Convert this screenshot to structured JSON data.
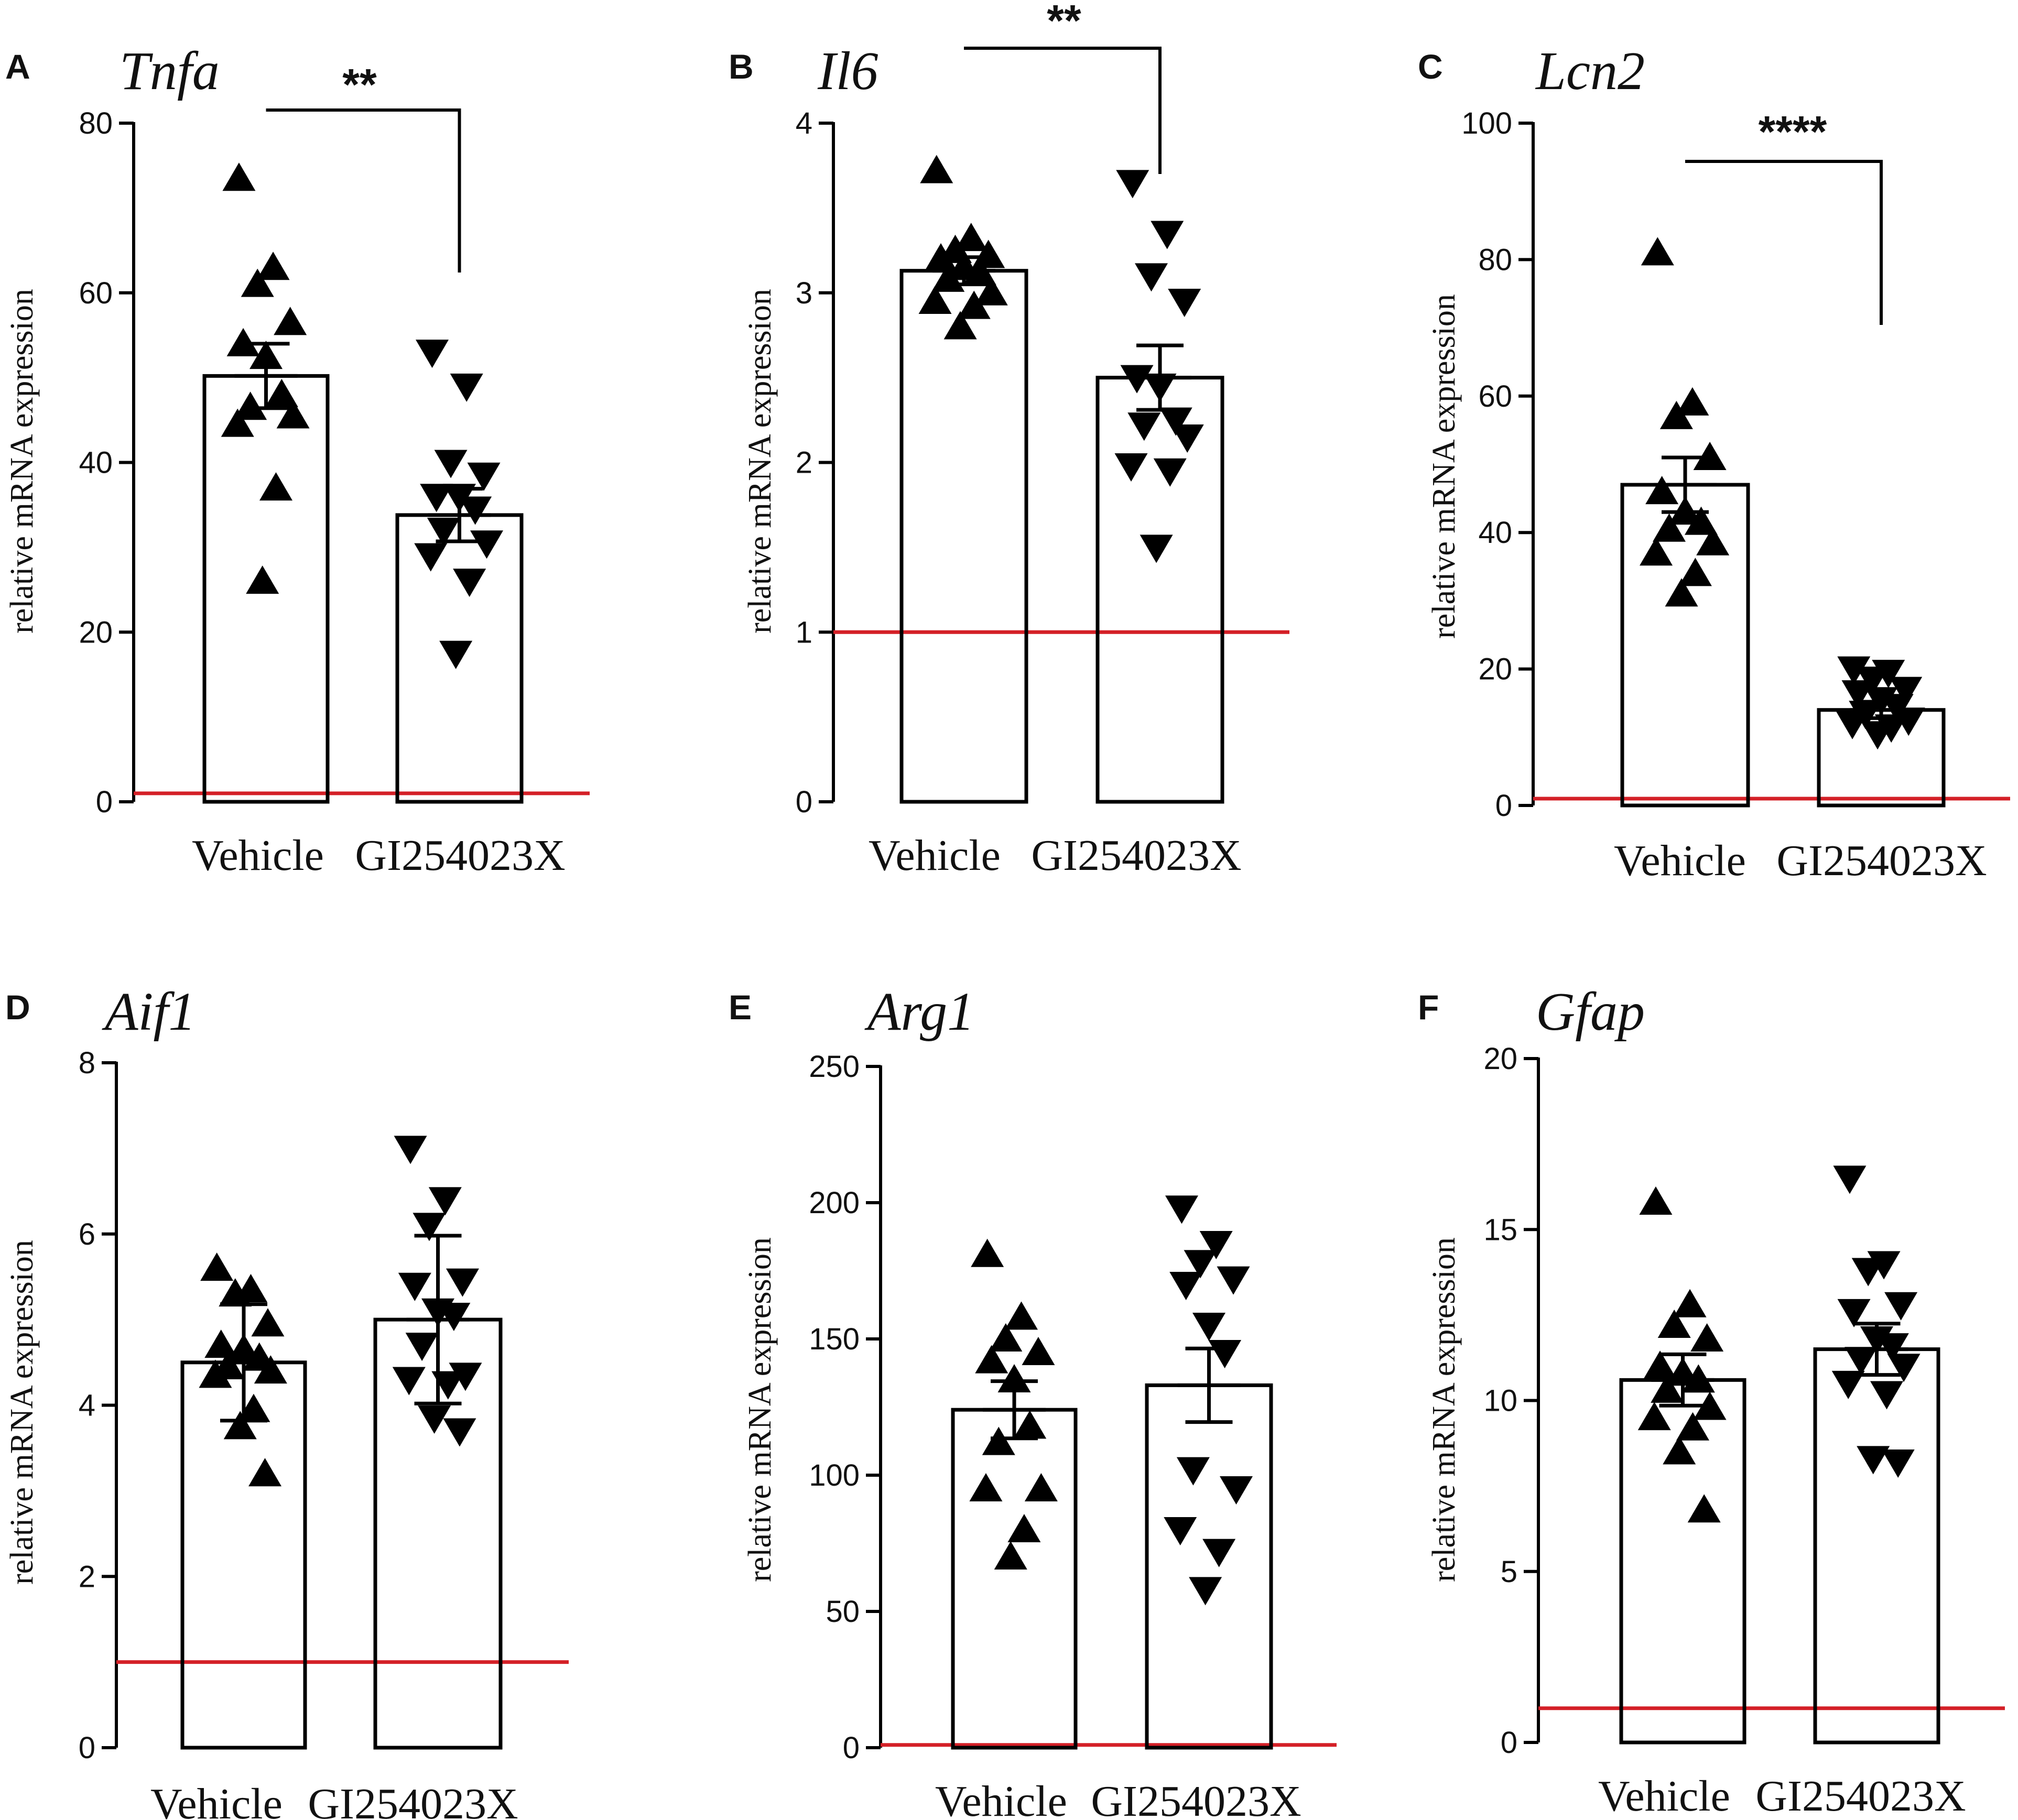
{
  "chart_data": [
    {
      "type": "bar",
      "panel": "A",
      "title": "Tnfa",
      "ylabel": "relative mRNA expression",
      "categories": [
        "Vehicle",
        "GI254023X"
      ],
      "ylim": [
        0,
        80
      ],
      "yticks": [
        0,
        20,
        40,
        60,
        80
      ],
      "means": [
        50.2,
        33.8
      ],
      "sem": [
        3.8,
        3.1
      ],
      "reference_line": 1,
      "significance": "**",
      "points": [
        [
          73.5,
          63.0,
          61.0,
          56.5,
          54.0,
          52.5,
          48.0,
          46.5,
          45.5,
          44.5,
          37.0,
          26.0
        ],
        [
          53.0,
          49.0,
          40.0,
          38.5,
          36.0,
          36.0,
          34.5,
          32.0,
          30.5,
          29.0,
          26.0,
          17.5
        ]
      ]
    },
    {
      "type": "bar",
      "panel": "B",
      "title": "Il6",
      "ylabel": "relative mRNA expression",
      "categories": [
        "Vehicle",
        "GI254023X"
      ],
      "ylim": [
        0,
        4
      ],
      "yticks": [
        0,
        1,
        2,
        3,
        4
      ],
      "means": [
        3.13,
        2.5
      ],
      "sem": [
        0.08,
        0.19
      ],
      "reference_line": 1,
      "significance": "**",
      "points": [
        [
          3.72,
          3.32,
          3.25,
          3.22,
          3.2,
          3.15,
          3.12,
          3.08,
          3.0,
          2.95,
          2.92,
          2.8
        ],
        [
          3.65,
          3.35,
          3.1,
          2.95,
          2.5,
          2.45,
          2.25,
          2.22,
          2.15,
          1.98,
          1.95,
          1.5
        ]
      ]
    },
    {
      "type": "bar",
      "panel": "C",
      "title": "Lcn2",
      "ylabel": "relative mRNA expression",
      "categories": [
        "Vehicle",
        "GI254023X"
      ],
      "ylim": [
        0,
        100
      ],
      "yticks": [
        0,
        20,
        40,
        60,
        80,
        100
      ],
      "means": [
        47.0,
        14.0
      ],
      "sem": [
        4.0,
        1.2
      ],
      "reference_line": 1,
      "significance": "****",
      "points": [
        [
          81.0,
          59.0,
          57.0,
          51.0,
          46.0,
          43.0,
          41.5,
          40.5,
          38.5,
          37.0,
          34.0,
          31.0
        ],
        [
          20.0,
          19.5,
          18.5,
          17.0,
          16.5,
          15.5,
          14.5,
          13.5,
          12.5,
          12.0,
          11.5,
          10.5
        ]
      ]
    },
    {
      "type": "bar",
      "panel": "D",
      "title": "Aif1",
      "ylabel": "relative mRNA expression",
      "categories": [
        "Vehicle",
        "GI254023X"
      ],
      "ylim": [
        0,
        8
      ],
      "yticks": [
        0,
        2,
        4,
        6,
        8
      ],
      "means": [
        4.5,
        5.0
      ],
      "sem": [
        0.68,
        0.98
      ],
      "reference_line": 1,
      "significance": "",
      "points": [
        [
          5.6,
          5.35,
          5.3,
          4.95,
          4.7,
          4.65,
          4.55,
          4.45,
          4.4,
          4.35,
          3.95,
          3.75,
          3.2
        ],
        [
          7.0,
          6.4,
          6.1,
          5.45,
          5.4,
          5.1,
          5.05,
          4.7,
          4.35,
          4.3,
          4.25,
          3.85,
          3.7
        ]
      ]
    },
    {
      "type": "bar",
      "panel": "E",
      "title": "Arg1",
      "ylabel": "relative mRNA expression",
      "categories": [
        "Vehicle",
        "GI254023X"
      ],
      "ylim": [
        0,
        250
      ],
      "yticks": [
        0,
        50,
        100,
        150,
        200,
        250
      ],
      "means": [
        124,
        133
      ],
      "sem": [
        10.5,
        13.5
      ],
      "reference_line": 1,
      "significance": "",
      "points": [
        [
          181,
          158,
          150,
          145,
          142,
          135,
          118,
          112,
          95,
          95,
          80,
          70
        ],
        [
          198,
          185,
          178,
          172,
          170,
          155,
          145,
          102,
          95,
          80,
          72,
          58
        ]
      ]
    },
    {
      "type": "bar",
      "panel": "F",
      "title": "Gfap",
      "ylabel": "relative mRNA expression",
      "categories": [
        "Vehicle",
        "GI254023X"
      ],
      "ylim": [
        0,
        20
      ],
      "yticks": [
        0,
        5,
        10,
        15,
        20
      ],
      "means": [
        10.6,
        11.5
      ],
      "sem": [
        0.75,
        0.75
      ],
      "reference_line": 1,
      "significance": "",
      "points": [
        [
          15.8,
          12.8,
          12.2,
          11.8,
          11.0,
          10.8,
          10.6,
          10.3,
          9.8,
          9.5,
          9.2,
          8.5,
          6.8
        ],
        [
          16.5,
          14.0,
          13.8,
          12.8,
          12.6,
          11.8,
          11.6,
          11.2,
          11.0,
          10.5,
          10.2,
          8.3,
          8.2
        ]
      ]
    }
  ]
}
